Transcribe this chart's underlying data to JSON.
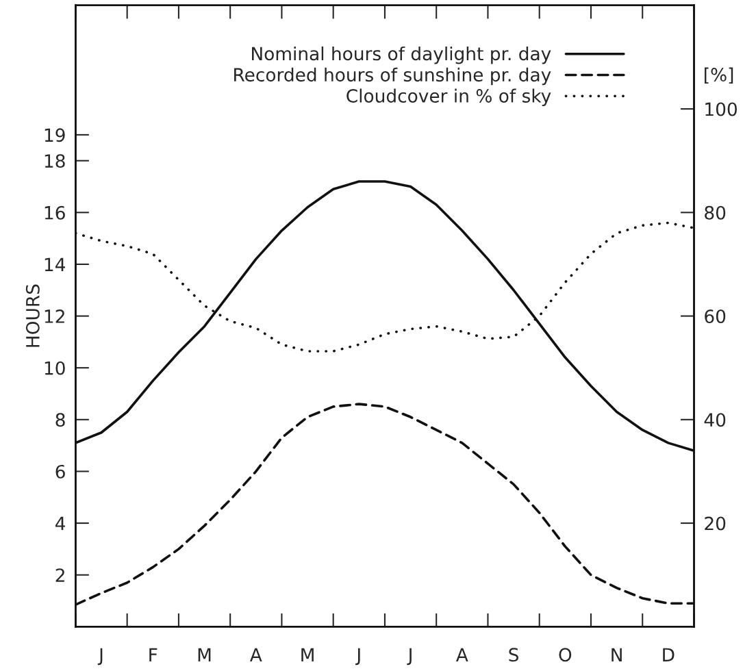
{
  "chart_data": {
    "type": "line",
    "ylabel": "HOURS",
    "y2label": "[%]",
    "categories": [
      null,
      "J",
      null,
      "F",
      null,
      "M",
      null,
      "A",
      null,
      "M",
      null,
      "J",
      null,
      "J",
      null,
      "A",
      null,
      "S",
      null,
      "O",
      null,
      "N",
      null,
      "D",
      null
    ],
    "ylim": [
      0,
      24
    ],
    "yticks": [
      2,
      4,
      6,
      8,
      10,
      12,
      14,
      16,
      18,
      19
    ],
    "y2lim": [
      0,
      120
    ],
    "y2ticks": [
      20,
      40,
      60,
      80,
      100
    ],
    "legend": "top",
    "grid": false,
    "series": [
      {
        "name": "Nominal hours of daylight pr. day",
        "color": "#111111",
        "line_style": "solid",
        "values": [
          7.1,
          7.5,
          8.3,
          9.5,
          10.6,
          11.6,
          12.9,
          14.2,
          15.3,
          16.2,
          16.9,
          17.2,
          17.2,
          17.0,
          16.3,
          15.3,
          14.2,
          13.0,
          11.7,
          10.4,
          9.3,
          8.3,
          7.6,
          7.1,
          6.8
        ]
      },
      {
        "name": "Recorded hours of sunshine pr. day",
        "color": "#111111",
        "line_style": "dashed",
        "values": [
          0.85,
          1.3,
          1.7,
          2.3,
          3.0,
          3.9,
          4.9,
          6.0,
          7.3,
          8.1,
          8.5,
          8.6,
          8.5,
          8.1,
          7.6,
          7.1,
          6.3,
          5.5,
          4.4,
          3.1,
          2.0,
          1.5,
          1.1,
          0.9,
          0.9
        ]
      },
      {
        "name": "Cloudcover in % of sky",
        "color": "#111111",
        "line_style": "dotted",
        "axis": "y2",
        "values": [
          76,
          74.5,
          73.5,
          72,
          67,
          62,
          59,
          57.7,
          54.5,
          53.2,
          53.2,
          54.5,
          56.5,
          57.5,
          58,
          57,
          55.6,
          56,
          60,
          66.5,
          72,
          76,
          77.5,
          78,
          77
        ]
      }
    ]
  }
}
